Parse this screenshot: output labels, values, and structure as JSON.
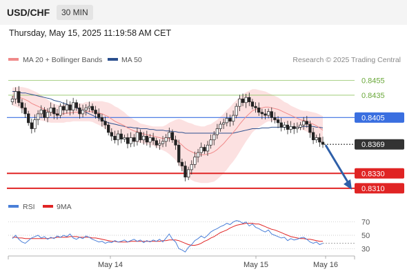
{
  "header": {
    "symbol": "USD/CHF",
    "timeframe": "30 MIN",
    "datetime": "Thursday, May 15, 2025 11:19:58 AM CET"
  },
  "legend": {
    "ma20": {
      "label": "MA 20 + Bollinger Bands",
      "color": "#f08a8a"
    },
    "ma50": {
      "label": "MA 50",
      "color": "#2b4f8e"
    },
    "credit": "Research © 2025 Trading Central"
  },
  "chart_data": [
    {
      "type": "candlestick",
      "price_axis_range": [
        0.8296,
        0.8472
      ],
      "time_labels": [
        "May 14",
        "May 15",
        "May 16"
      ],
      "levels": [
        {
          "value": "0.8455",
          "kind": "resistance-minor",
          "color": "#8fc463"
        },
        {
          "value": "0.8435",
          "kind": "resistance-minor",
          "color": "#8fc463"
        },
        {
          "value": "0.8405",
          "kind": "resistance",
          "color": "#3a6fe0"
        },
        {
          "value": "0.8369",
          "kind": "last-price",
          "color": "#333333"
        },
        {
          "value": "0.8330",
          "kind": "support",
          "color": "#e02424"
        },
        {
          "value": "0.8310",
          "kind": "support",
          "color": "#e02424"
        }
      ],
      "projection": {
        "from": 0.8368,
        "to": 0.831,
        "direction": "down",
        "color": "#2e5fa8"
      },
      "closes": [
        0.843,
        0.844,
        0.8425,
        0.8418,
        0.841,
        0.8398,
        0.839,
        0.8402,
        0.841,
        0.8415,
        0.8405,
        0.8412,
        0.8418,
        0.841,
        0.8408,
        0.842,
        0.8415,
        0.8422,
        0.8415,
        0.8425,
        0.8418,
        0.841,
        0.8415,
        0.8418,
        0.842,
        0.8415,
        0.841,
        0.8405,
        0.84,
        0.8395,
        0.8385,
        0.838,
        0.8375,
        0.8383,
        0.8376,
        0.8378,
        0.837,
        0.8378,
        0.8373,
        0.8385,
        0.8375,
        0.838,
        0.8372,
        0.8378,
        0.8374,
        0.8368,
        0.837,
        0.8373,
        0.8378,
        0.8385,
        0.8375,
        0.8368,
        0.8345,
        0.834,
        0.8325,
        0.8335,
        0.8342,
        0.8352,
        0.8358,
        0.8365,
        0.836,
        0.8368,
        0.8375,
        0.8382,
        0.839,
        0.8396,
        0.8398,
        0.8404,
        0.84,
        0.8408,
        0.842,
        0.843,
        0.8425,
        0.8432,
        0.8426,
        0.842,
        0.8418,
        0.8412,
        0.841,
        0.8408,
        0.8413,
        0.8405,
        0.8402,
        0.8398,
        0.8392,
        0.8395,
        0.8389,
        0.8393,
        0.839,
        0.8392,
        0.8395,
        0.84,
        0.8396,
        0.8385,
        0.8375,
        0.8378,
        0.8372,
        0.8369
      ],
      "ma20": [
        0.8433,
        0.8433,
        0.8432,
        0.8431,
        0.8429,
        0.8427,
        0.8424,
        0.8422,
        0.842,
        0.8418,
        0.8416,
        0.8414,
        0.8412,
        0.8411,
        0.841,
        0.841,
        0.841,
        0.8411,
        0.8411,
        0.8412,
        0.8412,
        0.8412,
        0.8412,
        0.8413,
        0.8413,
        0.8413,
        0.8412,
        0.8411,
        0.841,
        0.8408,
        0.8406,
        0.8403,
        0.84,
        0.8398,
        0.8396,
        0.8394,
        0.8391,
        0.8389,
        0.8387,
        0.8386,
        0.8384,
        0.8383,
        0.8382,
        0.8381,
        0.838,
        0.8379,
        0.8378,
        0.8377,
        0.8377,
        0.8377,
        0.8376,
        0.8375,
        0.8372,
        0.8368,
        0.8364,
        0.8361,
        0.8359,
        0.8357,
        0.8356,
        0.8355,
        0.8355,
        0.8356,
        0.8357,
        0.8359,
        0.8362,
        0.8366,
        0.837,
        0.8375,
        0.838,
        0.8385,
        0.839,
        0.8396,
        0.8401,
        0.8406,
        0.841,
        0.8414,
        0.8416,
        0.8417,
        0.8418,
        0.8419,
        0.8419,
        0.8418,
        0.8417,
        0.8416,
        0.8414,
        0.8412,
        0.841,
        0.8408,
        0.8406,
        0.8404,
        0.8402,
        0.8401,
        0.84,
        0.8398,
        0.8396,
        0.8394,
        0.8391,
        0.8388
      ],
      "ma50": [
        0.844,
        0.844,
        0.8439,
        0.8438,
        0.8438,
        0.8437,
        0.8436,
        0.8435,
        0.8434,
        0.8433,
        0.8432,
        0.8431,
        0.843,
        0.8428,
        0.8427,
        0.8426,
        0.8424,
        0.8423,
        0.8421,
        0.842,
        0.8418,
        0.8416,
        0.8414,
        0.8412,
        0.841,
        0.8408,
        0.8406,
        0.8404,
        0.8402,
        0.84,
        0.8398,
        0.8397,
        0.8396,
        0.8395,
        0.8394,
        0.8393,
        0.8392,
        0.8392,
        0.8391,
        0.8391,
        0.839,
        0.839,
        0.839,
        0.8389,
        0.8389,
        0.8388,
        0.8388,
        0.8388,
        0.8387,
        0.8387,
        0.8386,
        0.8386,
        0.8385,
        0.8385,
        0.8384,
        0.8384,
        0.8384,
        0.8384,
        0.8384,
        0.8384,
        0.8384,
        0.8384,
        0.8384,
        0.8384,
        0.8384,
        0.8384,
        0.8384,
        0.8384,
        0.8384,
        0.8384,
        0.8385,
        0.8386,
        0.8387,
        0.8388,
        0.8389,
        0.839,
        0.839,
        0.839,
        0.8391,
        0.8391,
        0.8391,
        0.8392,
        0.8392,
        0.8392,
        0.8392,
        0.8392,
        0.8392,
        0.8392,
        0.8392,
        0.8392,
        0.8392,
        0.8393,
        0.8393,
        0.8393,
        0.8393,
        0.8392,
        0.8392,
        0.8391
      ],
      "bb_width": [
        0.0012,
        0.0013,
        0.0014,
        0.0015,
        0.0016,
        0.0017,
        0.0018,
        0.0018,
        0.0018,
        0.0017,
        0.0016,
        0.0015,
        0.0014,
        0.0013,
        0.0012,
        0.0012,
        0.0012,
        0.0012,
        0.0012,
        0.0012,
        0.0012,
        0.0012,
        0.0012,
        0.0013,
        0.0013,
        0.0014,
        0.0015,
        0.0016,
        0.0017,
        0.0018,
        0.0019,
        0.002,
        0.002,
        0.002,
        0.0019,
        0.0018,
        0.0017,
        0.0016,
        0.0015,
        0.0014,
        0.0013,
        0.0013,
        0.0013,
        0.0013,
        0.0013,
        0.0014,
        0.0015,
        0.0016,
        0.0018,
        0.0021,
        0.0024,
        0.0027,
        0.0031,
        0.0034,
        0.0036,
        0.0037,
        0.0038,
        0.0038,
        0.0038,
        0.0038,
        0.0038,
        0.0039,
        0.0039,
        0.004,
        0.004,
        0.004,
        0.004,
        0.004,
        0.0039,
        0.0039,
        0.0038,
        0.0037,
        0.0035,
        0.0033,
        0.0031,
        0.0029,
        0.0027,
        0.0025,
        0.0023,
        0.0021,
        0.0019,
        0.0018,
        0.0017,
        0.0016,
        0.0015,
        0.0014,
        0.0014,
        0.0013,
        0.0013,
        0.0013,
        0.0013,
        0.0013,
        0.0014,
        0.0015,
        0.0016,
        0.0017,
        0.0018,
        0.0019
      ]
    },
    {
      "type": "line",
      "legend": [
        {
          "name": "RSI",
          "color": "#4a7fd8"
        },
        {
          "name": "9MA",
          "color": "#e02424"
        }
      ],
      "y_ticks": [
        "70",
        "50",
        "30"
      ],
      "ylim": [
        20,
        80
      ],
      "rsi": [
        45,
        50,
        44,
        40,
        38,
        42,
        46,
        48,
        50,
        46,
        48,
        44,
        47,
        45,
        49,
        47,
        50,
        48,
        52,
        46,
        44,
        47,
        45,
        49,
        47,
        44,
        42,
        40,
        41,
        38,
        40,
        39,
        42,
        40,
        41,
        43,
        40,
        42,
        44,
        41,
        43,
        39,
        42,
        40,
        43,
        41,
        44,
        40,
        46,
        52,
        44,
        40,
        30,
        28,
        25,
        32,
        36,
        42,
        45,
        49,
        46,
        50,
        55,
        58,
        60,
        63,
        65,
        68,
        66,
        70,
        72,
        71,
        68,
        70,
        64,
        67,
        62,
        60,
        57,
        55,
        58,
        52,
        50,
        48,
        46,
        47,
        42,
        45,
        43,
        44,
        46,
        47,
        44,
        40,
        38,
        40,
        36,
        38
      ],
      "rsi_ma": [
        47,
        47,
        46,
        46,
        45,
        45,
        45,
        45,
        45,
        45,
        45,
        45,
        46,
        46,
        47,
        47,
        47,
        47,
        48,
        48,
        48,
        47,
        47,
        47,
        47,
        46,
        46,
        45,
        44,
        43,
        42,
        41,
        41,
        40,
        40,
        40,
        40,
        41,
        41,
        41,
        41,
        41,
        41,
        41,
        41,
        41,
        41,
        42,
        42,
        43,
        43,
        43,
        42,
        40,
        38,
        36,
        35,
        35,
        36,
        38,
        41,
        43,
        46,
        48,
        51,
        54,
        56,
        58,
        61,
        63,
        65,
        66,
        67,
        68,
        68,
        68,
        67,
        67,
        65,
        63,
        61,
        59,
        58,
        56,
        54,
        52,
        50,
        48,
        47,
        46,
        45,
        45,
        44,
        44,
        43,
        42,
        41,
        41
      ],
      "rsi_current": 38
    }
  ]
}
